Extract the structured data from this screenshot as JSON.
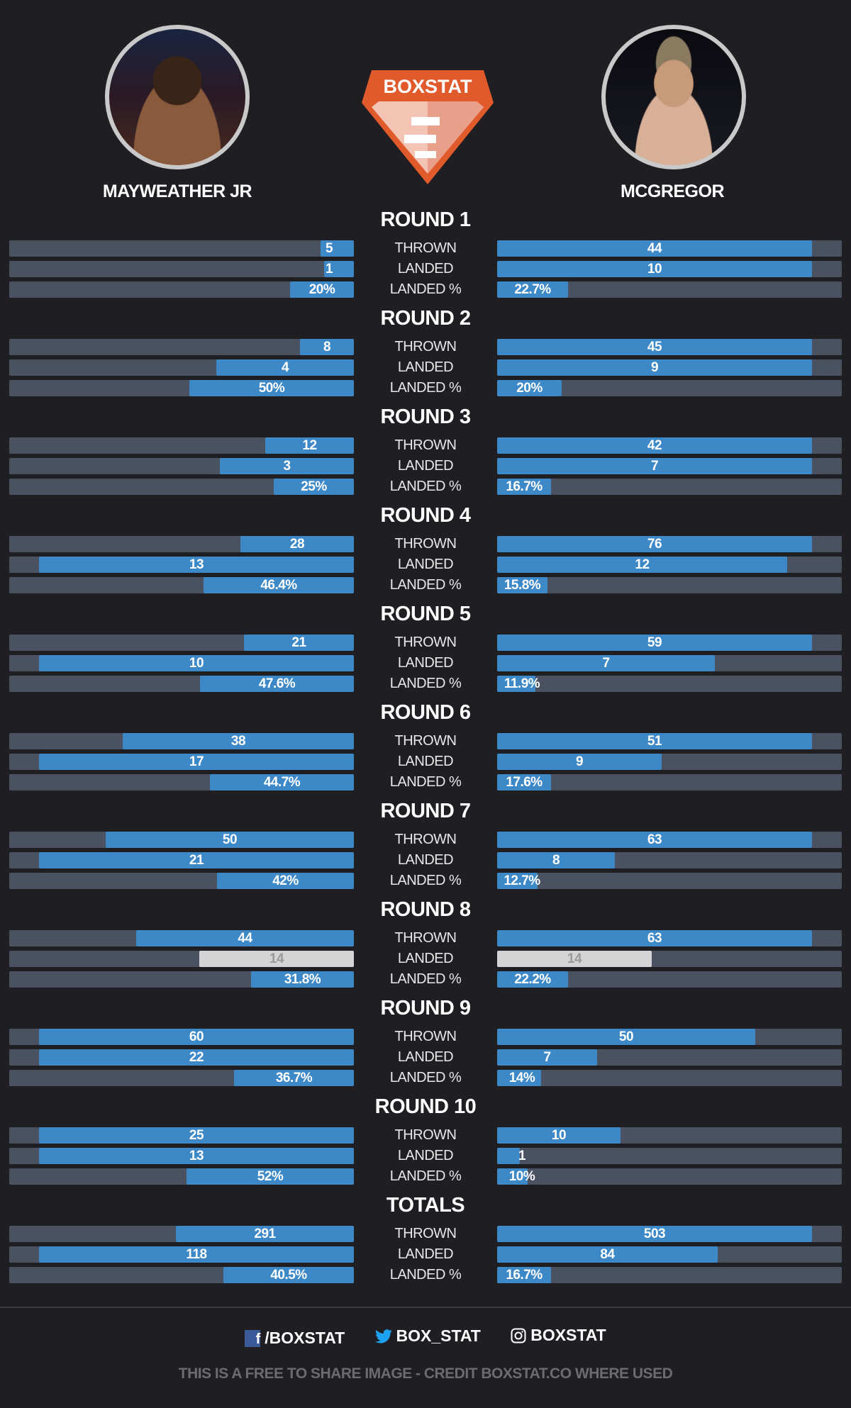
{
  "logo": {
    "text": "BOXSTAT",
    "color": "#e05a2b"
  },
  "fighters": {
    "left": "MAYWEATHER JR",
    "right": "MCGREGOR"
  },
  "colors": {
    "fill": "#3d88c7",
    "track": "#4a5262",
    "tie": "#d4d4d4"
  },
  "row_labels": [
    "THROWN",
    "LANDED",
    "LANDED %"
  ],
  "rounds": [
    {
      "title": "ROUND 1",
      "left": [
        [
          "5",
          0.097
        ],
        [
          "1",
          0.086
        ],
        [
          "20%",
          0.185
        ]
      ],
      "right": [
        [
          "44",
          0.914
        ],
        [
          "10",
          0.914
        ],
        [
          "22.7%",
          0.206
        ]
      ]
    },
    {
      "title": "ROUND 2",
      "left": [
        [
          "8",
          0.157
        ],
        [
          "4",
          0.4
        ],
        [
          "50%",
          0.478
        ]
      ],
      "right": [
        [
          "45",
          0.914
        ],
        [
          "9",
          0.914
        ],
        [
          "20%",
          0.188
        ]
      ]
    },
    {
      "title": "ROUND 3",
      "left": [
        [
          "12",
          0.258
        ],
        [
          "3",
          0.389
        ],
        [
          "25%",
          0.232
        ]
      ],
      "right": [
        [
          "42",
          0.914
        ],
        [
          "7",
          0.914
        ],
        [
          "16.7%",
          0.157
        ]
      ]
    },
    {
      "title": "ROUND 4",
      "left": [
        [
          "28",
          0.329
        ],
        [
          "13",
          0.914
        ],
        [
          "46.4%",
          0.436
        ]
      ],
      "right": [
        [
          "76",
          0.914
        ],
        [
          "12",
          0.841
        ],
        [
          "15.8%",
          0.146
        ]
      ]
    },
    {
      "title": "ROUND 5",
      "left": [
        [
          "21",
          0.318
        ],
        [
          "10",
          0.914
        ],
        [
          "47.6%",
          0.446
        ]
      ],
      "right": [
        [
          "59",
          0.914
        ],
        [
          "7",
          0.632
        ],
        [
          "11.9%",
          0.112
        ]
      ]
    },
    {
      "title": "ROUND 6",
      "left": [
        [
          "38",
          0.671
        ],
        [
          "17",
          0.914
        ],
        [
          "44.7%",
          0.418
        ]
      ],
      "right": [
        [
          "51",
          0.914
        ],
        [
          "9",
          0.478
        ],
        [
          "17.6%",
          0.157
        ]
      ]
    },
    {
      "title": "ROUND 7",
      "left": [
        [
          "50",
          0.72
        ],
        [
          "21",
          0.914
        ],
        [
          "42%",
          0.397
        ]
      ],
      "right": [
        [
          "63",
          0.914
        ],
        [
          "8",
          0.342
        ],
        [
          "12.7%",
          0.117
        ]
      ]
    },
    {
      "title": "ROUND 8",
      "left": [
        [
          "44",
          0.632
        ],
        [
          "14",
          0.449,
          "tie"
        ],
        [
          "31.8%",
          0.298
        ]
      ],
      "right": [
        [
          "63",
          0.914
        ],
        [
          "14",
          0.449,
          "tie"
        ],
        [
          "22.2%",
          0.206
        ]
      ]
    },
    {
      "title": "ROUND 9",
      "left": [
        [
          "60",
          0.914
        ],
        [
          "22",
          0.914
        ],
        [
          "36.7%",
          0.347
        ]
      ],
      "right": [
        [
          "50",
          0.749
        ],
        [
          "7",
          0.29
        ],
        [
          "14%",
          0.128
        ]
      ]
    },
    {
      "title": "ROUND 10",
      "left": [
        [
          "25",
          0.914
        ],
        [
          "13",
          0.914
        ],
        [
          "52%",
          0.486
        ]
      ],
      "right": [
        [
          "10",
          0.358
        ],
        [
          "1",
          0.065
        ],
        [
          "10%",
          0.089
        ]
      ]
    },
    {
      "title": "TOTALS",
      "left": [
        [
          "291",
          0.517
        ],
        [
          "118",
          0.914
        ],
        [
          "40.5%",
          0.379
        ]
      ],
      "right": [
        [
          "503",
          0.914
        ],
        [
          "84",
          0.64
        ],
        [
          "16.7%",
          0.157
        ]
      ]
    }
  ],
  "footer": {
    "facebook": "/BOXSTAT",
    "twitter": "BOX_STAT",
    "instagram": "BOXSTAT",
    "credit": "THIS IS A FREE TO SHARE IMAGE - CREDIT BOXSTAT.CO WHERE USED"
  }
}
